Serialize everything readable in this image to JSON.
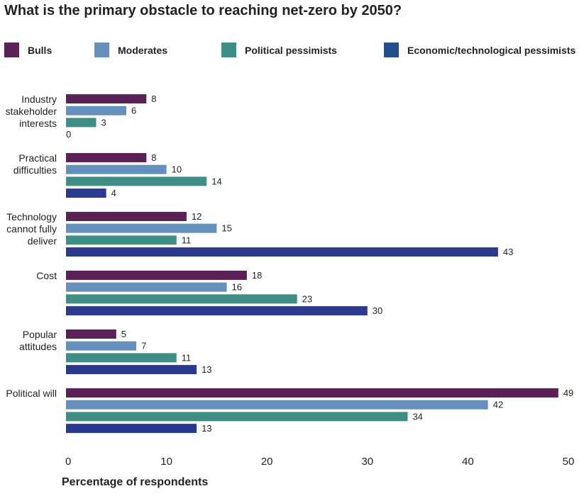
{
  "chart_data": {
    "type": "bar",
    "orientation": "horizontal",
    "title": "What is the primary obstacle to reaching net-zero by 2050?",
    "xlabel": "Percentage of respondents",
    "ylabel": "",
    "xlim": [
      0,
      50
    ],
    "xticks": [
      0,
      10,
      20,
      30,
      40,
      50
    ],
    "grid": false,
    "legend_position": "top",
    "categories": [
      [
        "Industry",
        "stakeholder",
        "interests"
      ],
      [
        "Practical",
        "difficulties"
      ],
      [
        "Technology",
        "cannot fully",
        "deliver"
      ],
      [
        "Cost"
      ],
      [
        "Popular",
        "attitudes"
      ],
      [
        "Political will"
      ]
    ],
    "series": [
      {
        "name": "Bulls",
        "color": "#5b2157",
        "values": [
          8,
          8,
          12,
          18,
          5,
          49
        ]
      },
      {
        "name": "Moderates",
        "color": "#6590bd",
        "values": [
          6,
          10,
          15,
          16,
          7,
          42
        ]
      },
      {
        "name": "Political pessimists",
        "color": "#3e8e86",
        "values": [
          3,
          14,
          11,
          23,
          11,
          34
        ]
      },
      {
        "name": "Economic/technological pessimists",
        "color": "#2b3a8c",
        "legend_color": "#22508f",
        "values": [
          0,
          4,
          43,
          30,
          13,
          13
        ]
      }
    ]
  }
}
